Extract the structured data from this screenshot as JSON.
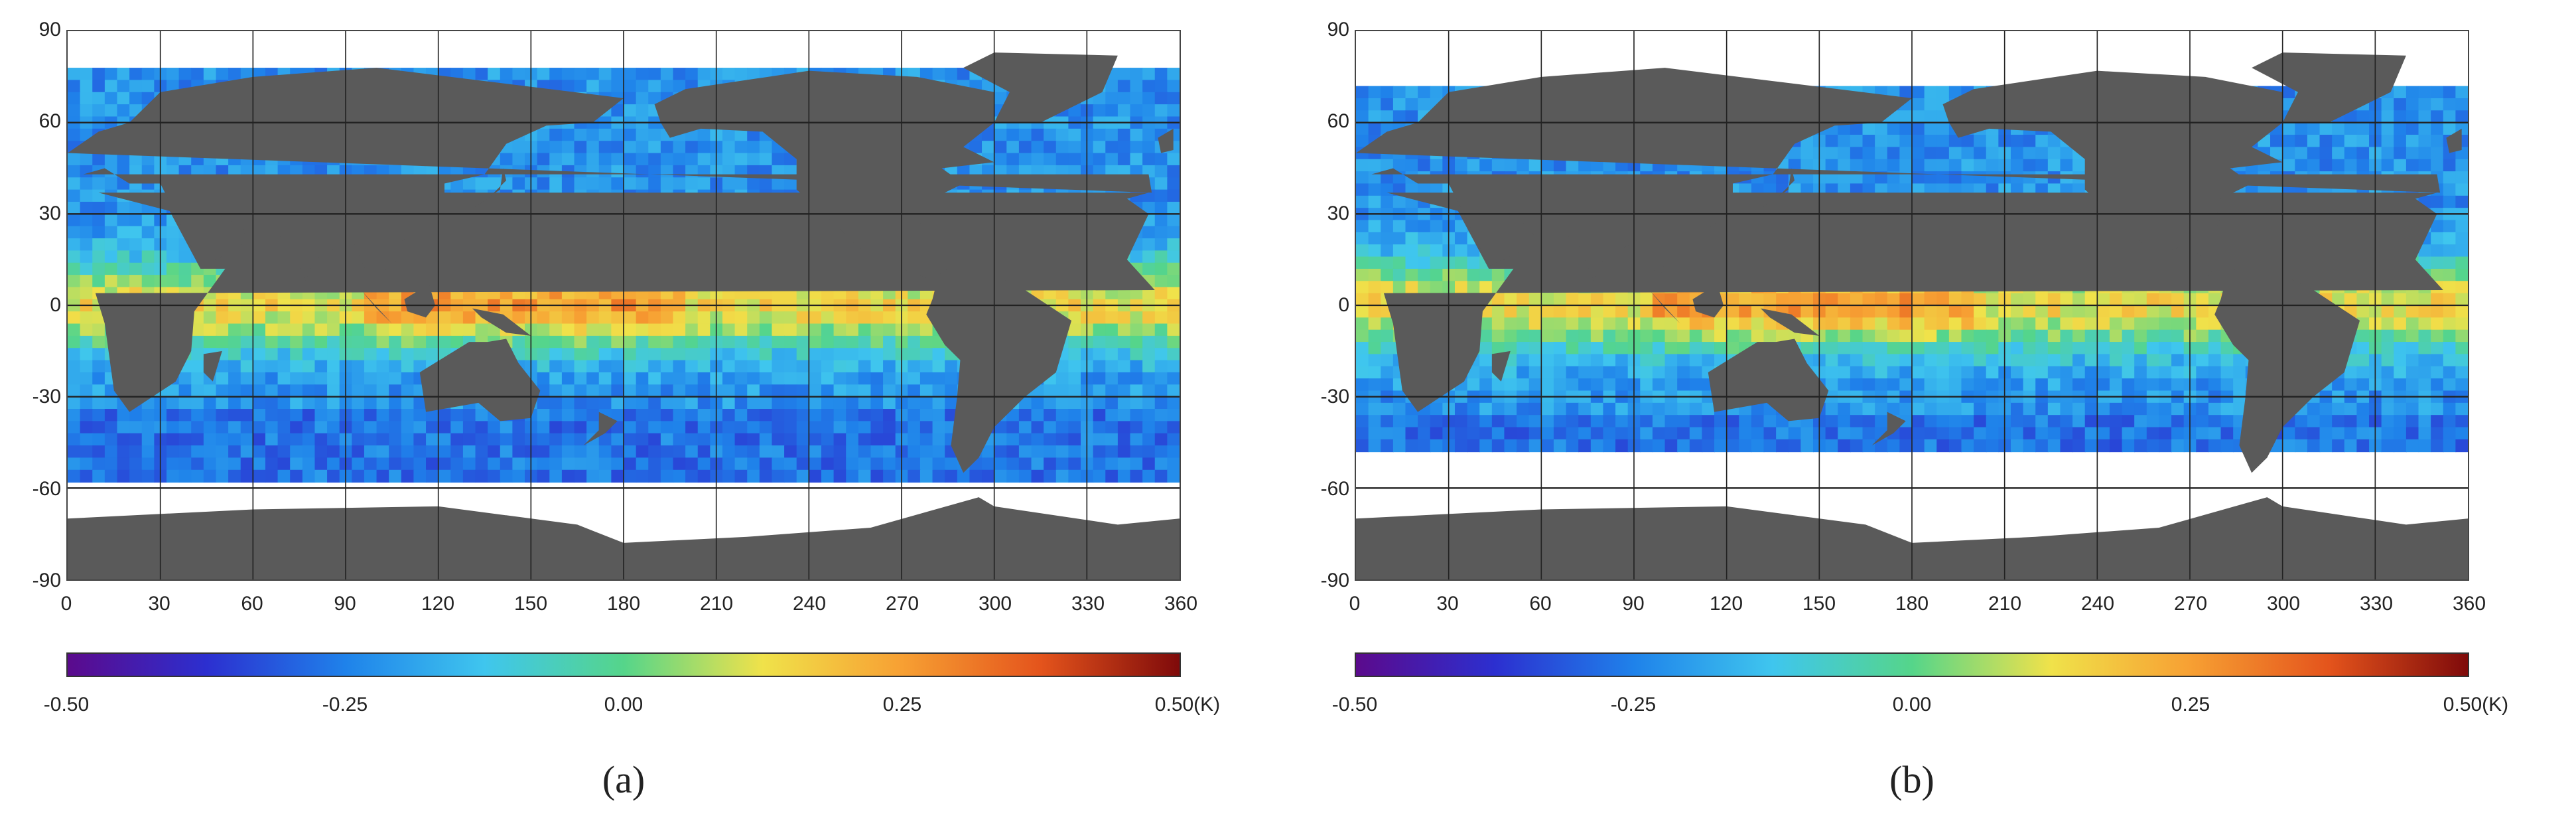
{
  "panels": [
    {
      "label": "(a)",
      "y_ticks": [
        "90",
        "60",
        "30",
        "0",
        "-30",
        "-60",
        "-90"
      ],
      "x_ticks": [
        "0",
        "30",
        "60",
        "90",
        "120",
        "150",
        "180",
        "210",
        "240",
        "270",
        "300",
        "330",
        "360"
      ],
      "colorbar": {
        "ticks": [
          "-0.50",
          "-0.25",
          "0.00",
          "0.25",
          "0.50(K)"
        ],
        "range": [
          -0.5,
          0.5
        ]
      },
      "valid_lat_range": [
        -55,
        78
      ]
    },
    {
      "label": "(b)",
      "y_ticks": [
        "90",
        "60",
        "30",
        "0",
        "-30",
        "-60",
        "-90"
      ],
      "x_ticks": [
        "0",
        "30",
        "60",
        "90",
        "120",
        "150",
        "180",
        "210",
        "240",
        "270",
        "300",
        "330",
        "360"
      ],
      "colorbar": {
        "ticks": [
          "-0.50",
          "-0.25",
          "0.00",
          "0.25",
          "0.50(K)"
        ],
        "range": [
          -0.5,
          0.5
        ]
      },
      "valid_lat_range": [
        -45,
        72
      ]
    }
  ],
  "map": {
    "lon_range": [
      0,
      360
    ],
    "lat_range": [
      -90,
      90
    ],
    "grid_lon_step": 30,
    "grid_lat_step": 30,
    "land_color": "#5a5a5a",
    "no_data_color": "#ffffff",
    "colormap": [
      "#5b0a8c",
      "#2c2fd0",
      "#1f82ea",
      "#3fc6ee",
      "#55d58a",
      "#f0e24a",
      "#f7a033",
      "#e4541c",
      "#7f0a0a"
    ]
  }
}
